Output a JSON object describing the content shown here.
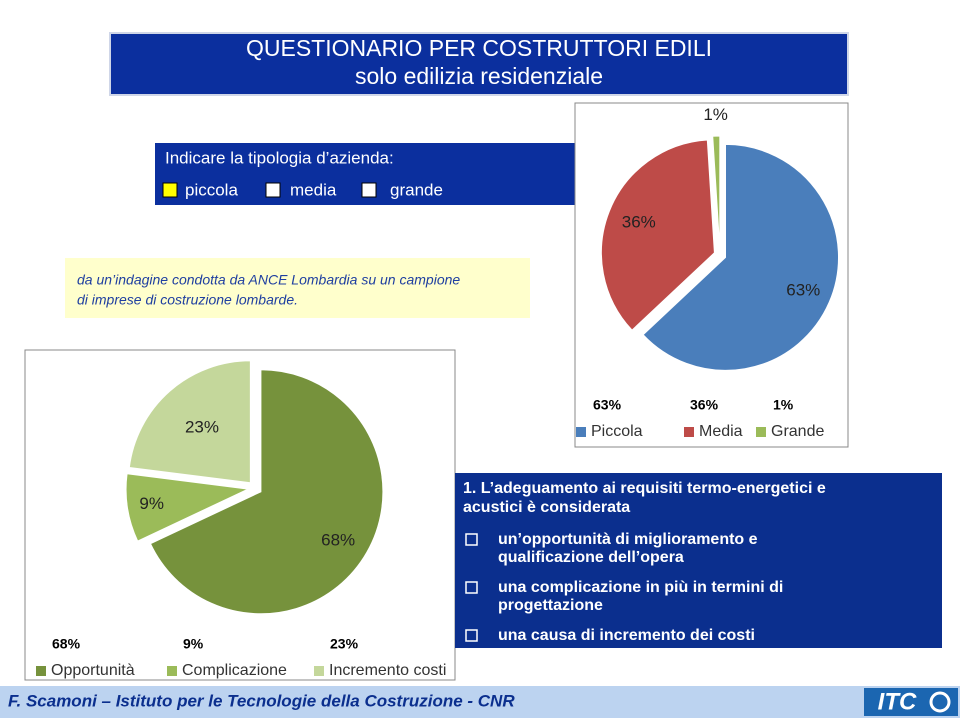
{
  "title": [
    "QUESTIONARIO PER COSTRUTTORI EDILI",
    "solo edilizia residenziale"
  ],
  "question": {
    "prompt": "Indicare la tipologia d’azienda:",
    "options": [
      "piccola",
      "media",
      "grande"
    ]
  },
  "note": [
    "da un’indagine condotta da ANCE Lombardia su un campione",
    "di imprese di costruzione lombarde."
  ],
  "chart_data": [
    {
      "type": "pie",
      "categories": [
        "Piccola",
        "Media",
        "Grande"
      ],
      "values": [
        63,
        36,
        1
      ],
      "value_labels": [
        "63%",
        "36%",
        "1%"
      ],
      "colors": [
        "#4a7ebb",
        "#be4b48",
        "#9bbb59"
      ]
    },
    {
      "type": "pie",
      "categories": [
        "Opportunità",
        "Complicazione",
        "Incremento costi"
      ],
      "values": [
        68,
        9,
        23
      ],
      "value_labels": [
        "68%",
        "9%",
        "23%"
      ],
      "colors": [
        "#76923c",
        "#9bbb59",
        "#c4d79b"
      ]
    }
  ],
  "statement": {
    "heading": [
      "1. L’adeguamento ai requisiti termo-energetici e",
      "acustici è considerata"
    ],
    "items": [
      [
        "un’opportunità di miglioramento e",
        "qualificazione dell’opera"
      ],
      [
        "una complicazione in più in termini di",
        "progettazione"
      ],
      [
        "una causa di incremento dei costi"
      ]
    ]
  },
  "footer": "F. Scamoni – Istituto per le Tecnologie della Costruzione - CNR",
  "logo": "ITC"
}
